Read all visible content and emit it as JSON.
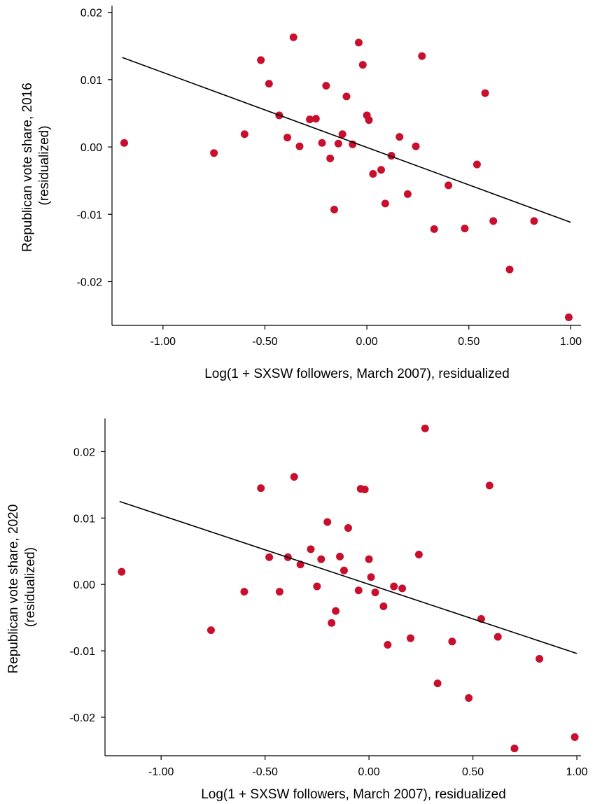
{
  "chart_data": [
    {
      "type": "scatter",
      "title": "",
      "xlabel": "Log(1 + SXSW followers, March 2007), residualized",
      "ylabel": [
        "Republican vote share, 2016",
        "(residualized)"
      ],
      "xlim": [
        -1.25,
        1.05
      ],
      "ylim": [
        -0.0265,
        0.021
      ],
      "xticks": [
        "-1.00",
        "-0.50",
        "0.00",
        "0.50",
        "1.00"
      ],
      "yticks": [
        "0.02",
        "0.01",
        "0.00",
        "-0.01",
        "-0.02"
      ],
      "xtick_values": [
        -1.0,
        -0.5,
        0.0,
        0.5,
        1.0
      ],
      "ytick_values": [
        0.02,
        0.01,
        0.0,
        -0.01,
        -0.02
      ],
      "point_color": "#c8102e",
      "fit_line": {
        "x": [
          -1.2,
          1.0
        ],
        "y": [
          0.0133,
          -0.0112
        ]
      },
      "points": [
        {
          "x": -1.19,
          "y": 0.0006
        },
        {
          "x": -0.75,
          "y": -0.0009
        },
        {
          "x": -0.6,
          "y": 0.0019
        },
        {
          "x": -0.52,
          "y": 0.0129
        },
        {
          "x": -0.48,
          "y": 0.0094
        },
        {
          "x": -0.43,
          "y": 0.0047
        },
        {
          "x": -0.39,
          "y": 0.0014
        },
        {
          "x": -0.36,
          "y": 0.0163
        },
        {
          "x": -0.33,
          "y": 0.0001
        },
        {
          "x": -0.28,
          "y": 0.0041
        },
        {
          "x": -0.25,
          "y": 0.0042
        },
        {
          "x": -0.22,
          "y": 0.0006
        },
        {
          "x": -0.2,
          "y": 0.0091
        },
        {
          "x": -0.18,
          "y": -0.0017
        },
        {
          "x": -0.16,
          "y": -0.0093
        },
        {
          "x": -0.14,
          "y": 0.0005
        },
        {
          "x": -0.12,
          "y": 0.0019
        },
        {
          "x": -0.1,
          "y": 0.0075
        },
        {
          "x": -0.07,
          "y": 0.0004
        },
        {
          "x": -0.04,
          "y": 0.0155
        },
        {
          "x": -0.02,
          "y": 0.0122
        },
        {
          "x": 0.0,
          "y": 0.0047
        },
        {
          "x": 0.01,
          "y": 0.004
        },
        {
          "x": 0.03,
          "y": -0.004
        },
        {
          "x": 0.07,
          "y": -0.0034
        },
        {
          "x": 0.09,
          "y": -0.0084
        },
        {
          "x": 0.12,
          "y": -0.0013
        },
        {
          "x": 0.16,
          "y": 0.0015
        },
        {
          "x": 0.2,
          "y": -0.007
        },
        {
          "x": 0.24,
          "y": 0.0001
        },
        {
          "x": 0.27,
          "y": 0.0135
        },
        {
          "x": 0.33,
          "y": -0.0122
        },
        {
          "x": 0.4,
          "y": -0.0057
        },
        {
          "x": 0.48,
          "y": -0.0121
        },
        {
          "x": 0.54,
          "y": -0.0026
        },
        {
          "x": 0.58,
          "y": 0.008
        },
        {
          "x": 0.62,
          "y": -0.011
        },
        {
          "x": 0.7,
          "y": -0.0182
        },
        {
          "x": 0.82,
          "y": -0.011
        },
        {
          "x": 0.99,
          "y": -0.0253
        }
      ]
    },
    {
      "type": "scatter",
      "title": "",
      "xlabel": "Log(1 + SXSW followers, March 2007), residualized",
      "ylabel": [
        "Republican vote share, 2020",
        "(residualized)"
      ],
      "xlim": [
        -1.27,
        1.02
      ],
      "ylim": [
        -0.0258,
        0.025
      ],
      "xticks": [
        "-1.00",
        "-0.50",
        "0.00",
        "0.50",
        "1.00"
      ],
      "yticks": [
        "0.02",
        "0.01",
        "0.00",
        "-0.01",
        "-0.02"
      ],
      "xtick_values": [
        -1.0,
        -0.5,
        0.0,
        0.5,
        1.0
      ],
      "ytick_values": [
        0.02,
        0.01,
        0.0,
        -0.01,
        -0.02
      ],
      "point_color": "#c8102e",
      "fit_line": {
        "x": [
          -1.2,
          1.0
        ],
        "y": [
          0.0125,
          -0.0104
        ]
      },
      "points": [
        {
          "x": -1.19,
          "y": 0.0019
        },
        {
          "x": -0.76,
          "y": -0.0069
        },
        {
          "x": -0.6,
          "y": -0.0011
        },
        {
          "x": -0.52,
          "y": 0.0145
        },
        {
          "x": -0.48,
          "y": 0.0041
        },
        {
          "x": -0.43,
          "y": -0.0011
        },
        {
          "x": -0.39,
          "y": 0.0041
        },
        {
          "x": -0.36,
          "y": 0.0162
        },
        {
          "x": -0.33,
          "y": 0.003
        },
        {
          "x": -0.28,
          "y": 0.0053
        },
        {
          "x": -0.25,
          "y": -0.0003
        },
        {
          "x": -0.23,
          "y": 0.0038
        },
        {
          "x": -0.2,
          "y": 0.0094
        },
        {
          "x": -0.18,
          "y": -0.0058
        },
        {
          "x": -0.16,
          "y": -0.004
        },
        {
          "x": -0.14,
          "y": 0.0042
        },
        {
          "x": -0.12,
          "y": 0.0021
        },
        {
          "x": -0.1,
          "y": 0.0085
        },
        {
          "x": -0.05,
          "y": -0.0009
        },
        {
          "x": -0.04,
          "y": 0.0144
        },
        {
          "x": -0.02,
          "y": 0.0143
        },
        {
          "x": 0.0,
          "y": 0.0038
        },
        {
          "x": 0.01,
          "y": 0.0011
        },
        {
          "x": 0.03,
          "y": -0.0012
        },
        {
          "x": 0.07,
          "y": -0.0033
        },
        {
          "x": 0.09,
          "y": -0.0091
        },
        {
          "x": 0.12,
          "y": -0.0003
        },
        {
          "x": 0.16,
          "y": -0.0006
        },
        {
          "x": 0.2,
          "y": -0.0081
        },
        {
          "x": 0.24,
          "y": 0.0045
        },
        {
          "x": 0.27,
          "y": 0.0235
        },
        {
          "x": 0.33,
          "y": -0.0149
        },
        {
          "x": 0.4,
          "y": -0.0086
        },
        {
          "x": 0.48,
          "y": -0.0171
        },
        {
          "x": 0.54,
          "y": -0.0052
        },
        {
          "x": 0.58,
          "y": 0.0149
        },
        {
          "x": 0.62,
          "y": -0.0079
        },
        {
          "x": 0.7,
          "y": -0.0247
        },
        {
          "x": 0.82,
          "y": -0.0112
        },
        {
          "x": 0.99,
          "y": -0.023
        }
      ]
    }
  ]
}
